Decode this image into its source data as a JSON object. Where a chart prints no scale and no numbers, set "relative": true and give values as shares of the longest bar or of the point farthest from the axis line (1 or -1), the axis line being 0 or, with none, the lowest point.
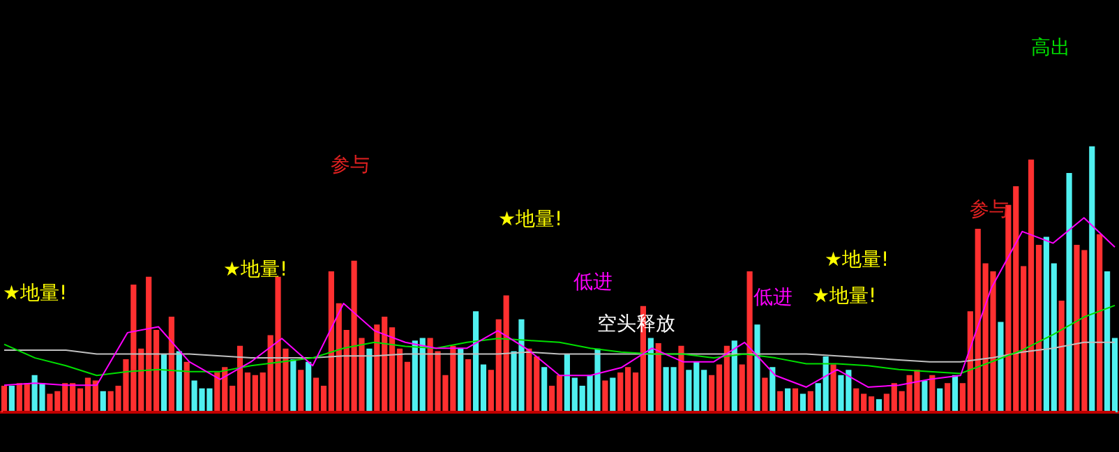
{
  "chart_data": [
    {
      "type": "bar",
      "relative": true,
      "annotations": [
        "★地量!",
        "★地量!",
        "参与",
        "★地量!",
        "低进",
        "空头释放",
        "低进",
        "★地量!",
        "★地量!",
        "参与",
        "高出"
      ],
      "categories": [
        null,
        null,
        null,
        null,
        null,
        null,
        null,
        null,
        null,
        null,
        null,
        null,
        null,
        null,
        null,
        null,
        null,
        null,
        null,
        null,
        null,
        null,
        null,
        null,
        null,
        null,
        null,
        null,
        null,
        null,
        null,
        null,
        null,
        null,
        null,
        null,
        null,
        null,
        null,
        null,
        null,
        null,
        null,
        null,
        null,
        null,
        null,
        null,
        null,
        null,
        null,
        null,
        null,
        null,
        null,
        null,
        null,
        null,
        null,
        null,
        null,
        null,
        null,
        null,
        null,
        null,
        null,
        null,
        null,
        null,
        null,
        null,
        null,
        null,
        null,
        null,
        null,
        null,
        null,
        null,
        null,
        null,
        null,
        null,
        null,
        null,
        null,
        null,
        null,
        null,
        null,
        null,
        null,
        null,
        null,
        null,
        null,
        null,
        null,
        null,
        null,
        null,
        null,
        null,
        null,
        null,
        null,
        null,
        null,
        null,
        null,
        null,
        null,
        null,
        null,
        null,
        null,
        null,
        null,
        null,
        null,
        null,
        null,
        null,
        null,
        null,
        null,
        null,
        null,
        null,
        null,
        null,
        null,
        null,
        null,
        null,
        null,
        null,
        null,
        null,
        null,
        null,
        null,
        null,
        null,
        null,
        null
      ],
      "values": [
        0.1,
        0.1,
        0.11,
        0.11,
        0.14,
        0.11,
        0.07,
        0.08,
        0.11,
        0.11,
        0.09,
        0.13,
        0.12,
        0.08,
        0.08,
        0.1,
        0.2,
        0.48,
        0.24,
        0.51,
        0.31,
        0.22,
        0.36,
        0.23,
        0.19,
        0.12,
        0.09,
        0.09,
        0.15,
        0.17,
        0.1,
        0.25,
        0.15,
        0.14,
        0.15,
        0.29,
        0.51,
        0.24,
        0.2,
        0.16,
        0.19,
        0.13,
        0.1,
        0.53,
        0.41,
        0.31,
        0.57,
        0.28,
        0.24,
        0.33,
        0.36,
        0.32,
        0.24,
        0.19,
        0.27,
        0.28,
        0.28,
        0.23,
        0.14,
        0.25,
        0.24,
        0.2,
        0.38,
        0.18,
        0.16,
        0.35,
        0.44,
        0.23,
        0.35,
        0.24,
        0.21,
        0.17,
        0.1,
        0.14,
        0.22,
        0.13,
        0.1,
        0.14,
        0.24,
        0.12,
        0.13,
        0.15,
        0.17,
        0.15,
        0.4,
        0.28,
        0.26,
        0.17,
        0.17,
        0.25,
        0.16,
        0.19,
        0.16,
        0.14,
        0.18,
        0.25,
        0.27,
        0.18,
        0.53,
        0.33,
        0.13,
        0.17,
        0.08,
        0.09,
        0.09,
        0.07,
        0.08,
        0.11,
        0.21,
        0.18,
        0.14,
        0.16,
        0.09,
        0.07,
        0.06,
        0.05,
        0.07,
        0.11,
        0.08,
        0.14,
        0.16,
        0.12,
        0.14,
        0.09,
        0.11,
        0.14,
        0.11,
        0.38,
        0.69,
        0.56,
        0.53,
        0.34,
        0.78,
        0.85,
        0.55,
        0.95,
        0.63,
        0.66,
        0.56,
        0.42,
        0.9,
        0.63,
        0.61,
        1,
        0.67,
        0.53,
        0.28
      ],
      "colors": [
        "#ff3030",
        "#50f0f0",
        "#ff3030",
        "#ff3030",
        "#50f0f0",
        "#50f0f0",
        "#ff3030",
        "#ff3030",
        "#ff3030",
        "#ff3030",
        "#ff3030",
        "#ff3030",
        "#ff3030",
        "#50f0f0",
        "#ff3030",
        "#ff3030",
        "#ff3030",
        "#ff3030",
        "#ff3030",
        "#ff3030",
        "#ff3030",
        "#50f0f0",
        "#ff3030",
        "#50f0f0",
        "#ff3030",
        "#50f0f0",
        "#50f0f0",
        "#50f0f0",
        "#ff3030",
        "#ff3030",
        "#ff3030",
        "#ff3030",
        "#ff3030",
        "#ff3030",
        "#ff3030",
        "#ff3030",
        "#ff3030",
        "#ff3030",
        "#50f0f0",
        "#ff3030",
        "#50f0f0",
        "#ff3030",
        "#ff3030",
        "#ff3030",
        "#ff3030",
        "#ff3030",
        "#ff3030",
        "#ff3030",
        "#50f0f0",
        "#ff3030",
        "#ff3030",
        "#ff3030",
        "#ff3030",
        "#ff3030",
        "#50f0f0",
        "#50f0f0",
        "#ff3030",
        "#ff3030",
        "#ff3030",
        "#ff3030",
        "#50f0f0",
        "#ff3030",
        "#50f0f0",
        "#50f0f0",
        "#ff3030",
        "#ff3030",
        "#ff3030",
        "#50f0f0",
        "#50f0f0",
        "#ff3030",
        "#ff3030",
        "#50f0f0",
        "#ff3030",
        "#ff3030",
        "#50f0f0",
        "#50f0f0",
        "#50f0f0",
        "#50f0f0",
        "#50f0f0",
        "#ff3030",
        "#50f0f0",
        "#ff3030",
        "#ff3030",
        "#ff3030",
        "#ff3030",
        "#50f0f0",
        "#ff3030",
        "#50f0f0",
        "#50f0f0",
        "#ff3030",
        "#50f0f0",
        "#50f0f0",
        "#50f0f0",
        "#ff3030",
        "#ff3030",
        "#ff3030",
        "#50f0f0",
        "#ff3030",
        "#ff3030",
        "#50f0f0",
        "#ff3030",
        "#50f0f0",
        "#ff3030",
        "#50f0f0",
        "#ff3030",
        "#50f0f0",
        "#ff3030",
        "#50f0f0",
        "#50f0f0",
        "#ff3030",
        "#50f0f0",
        "#50f0f0",
        "#ff3030",
        "#ff3030",
        "#ff3030",
        "#50f0f0",
        "#ff3030",
        "#ff3030",
        "#ff3030",
        "#ff3030",
        "#ff3030",
        "#50f0f0",
        "#ff3030",
        "#50f0f0",
        "#ff3030",
        "#50f0f0",
        "#ff3030",
        "#ff3030",
        "#ff3030",
        "#ff3030",
        "#ff3030",
        "#50f0f0",
        "#ff3030",
        "#ff3030",
        "#ff3030",
        "#ff3030",
        "#ff3030",
        "#50f0f0",
        "#50f0f0",
        "#ff3030",
        "#50f0f0",
        "#ff3030",
        "#ff3030",
        "#50f0f0",
        "#ff3030",
        "#50f0f0",
        "#50f0f0"
      ]
    },
    {
      "type": "line",
      "relative": true,
      "categories": [
        null,
        null,
        null,
        null,
        null,
        null,
        null,
        null,
        null,
        null,
        null,
        null,
        null,
        null,
        null,
        null,
        null,
        null,
        null,
        null,
        null,
        null,
        null,
        null,
        null,
        null,
        null,
        null,
        null,
        null,
        null,
        null,
        null,
        null,
        null,
        null,
        null
      ],
      "series": [
        {
          "color": "#ff00ff",
          "values": [
            0.14,
            0.15,
            0.14,
            0.14,
            0.41,
            0.44,
            0.26,
            0.17,
            0.26,
            0.38,
            0.24,
            0.56,
            0.42,
            0.36,
            0.33,
            0.33,
            0.42,
            0.32,
            0.19,
            0.19,
            0.23,
            0.33,
            0.26,
            0.26,
            0.36,
            0.19,
            0.13,
            0.22,
            0.13,
            0.14,
            0.17,
            0.19,
            0.64,
            0.93,
            0.87,
            1,
            0.85
          ]
        },
        {
          "color": "#00e000",
          "values": [
            0.35,
            0.28,
            0.24,
            0.19,
            0.21,
            0.22,
            0.21,
            0.21,
            0.24,
            0.26,
            0.28,
            0.33,
            0.36,
            0.34,
            0.33,
            0.36,
            0.38,
            0.37,
            0.36,
            0.33,
            0.31,
            0.3,
            0.3,
            0.28,
            0.3,
            0.28,
            0.25,
            0.25,
            0.24,
            0.22,
            0.21,
            0.2,
            0.26,
            0.32,
            0.4,
            0.49,
            0.55
          ]
        },
        {
          "color": "#c0c0c0",
          "values": [
            0.32,
            0.32,
            0.32,
            0.3,
            0.3,
            0.3,
            0.3,
            0.29,
            0.28,
            0.28,
            0.28,
            0.29,
            0.29,
            0.3,
            0.3,
            0.3,
            0.3,
            0.31,
            0.3,
            0.3,
            0.3,
            0.3,
            0.3,
            0.3,
            0.3,
            0.3,
            0.3,
            0.29,
            0.28,
            0.27,
            0.26,
            0.26,
            0.28,
            0.31,
            0.33,
            0.36,
            0.36
          ]
        }
      ]
    }
  ]
}
